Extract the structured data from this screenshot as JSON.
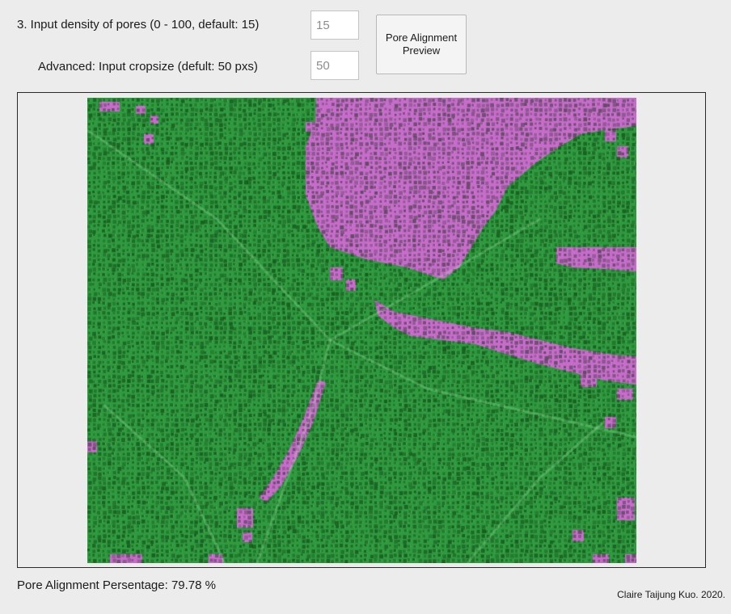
{
  "controls": {
    "density_label": "3. Input density of pores (0 - 100, default: 15)",
    "density_value": "15",
    "cropsize_label": "Advanced: Input cropsize (defult: 50 pxs)",
    "cropsize_value": "50",
    "preview_button_label": "Pore Alignment Preview"
  },
  "image": {
    "aligned_color": "#2f9a3f",
    "misaligned_color": "#c86ccc"
  },
  "results": {
    "alignment_text": "Pore Alignment Persentage: 79.78 %"
  },
  "footer": {
    "credit": "Claire Taijung Kuo. 2020."
  }
}
